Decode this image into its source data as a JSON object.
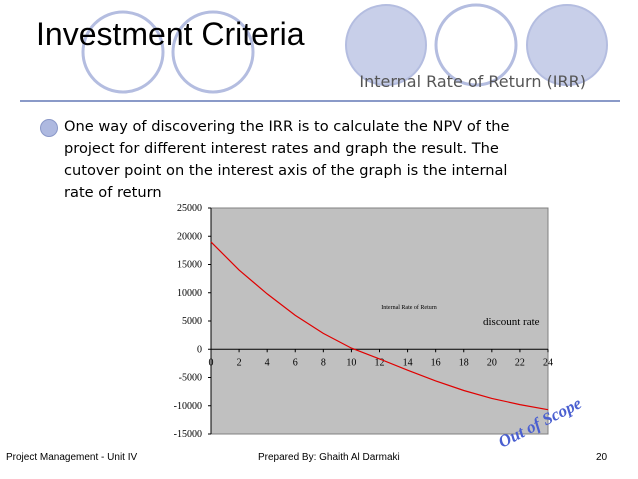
{
  "slide": {
    "title": "Investment Criteria",
    "subtitle": "Internal Rate of Return (IRR)",
    "body_lines": [
      "One way of discovering the IRR is to calculate the NPV of the",
      "project for different interest rates and graph the result.  The",
      "cutover point on the interest axis of the graph is the internal",
      "rate of return"
    ],
    "stamp": "Out of Scope",
    "footer": {
      "left": "Project Management - Unit IV",
      "center": "Prepared By: Ghaith Al Darmaki",
      "page": "20"
    },
    "colors": {
      "circle_fill": "#c8cfe9",
      "accent": "#8a9ac8",
      "stamp": "#4a5fd0",
      "plot_bg": "#c0c0c0",
      "line": "#e00000"
    }
  },
  "chart_data": {
    "type": "line",
    "title": "Internal Rate of Return",
    "xlabel": "discount rate",
    "ylabel": "",
    "xlim": [
      0,
      24
    ],
    "ylim": [
      -15000,
      25000
    ],
    "x_ticks": [
      0,
      2,
      4,
      6,
      8,
      10,
      12,
      14,
      16,
      18,
      20,
      22,
      24
    ],
    "y_ticks": [
      25000,
      20000,
      15000,
      10000,
      5000,
      0,
      -5000,
      -10000,
      -15000
    ],
    "grid": false,
    "series": [
      {
        "name": "",
        "x": [
          0,
          2,
          4,
          6,
          8,
          10,
          12,
          14,
          16,
          18,
          20,
          22,
          24
        ],
        "values": [
          19000,
          14000,
          9800,
          6000,
          2800,
          200,
          -1700,
          -3700,
          -5600,
          -7300,
          -8700,
          -9800,
          -10700
        ]
      }
    ]
  }
}
